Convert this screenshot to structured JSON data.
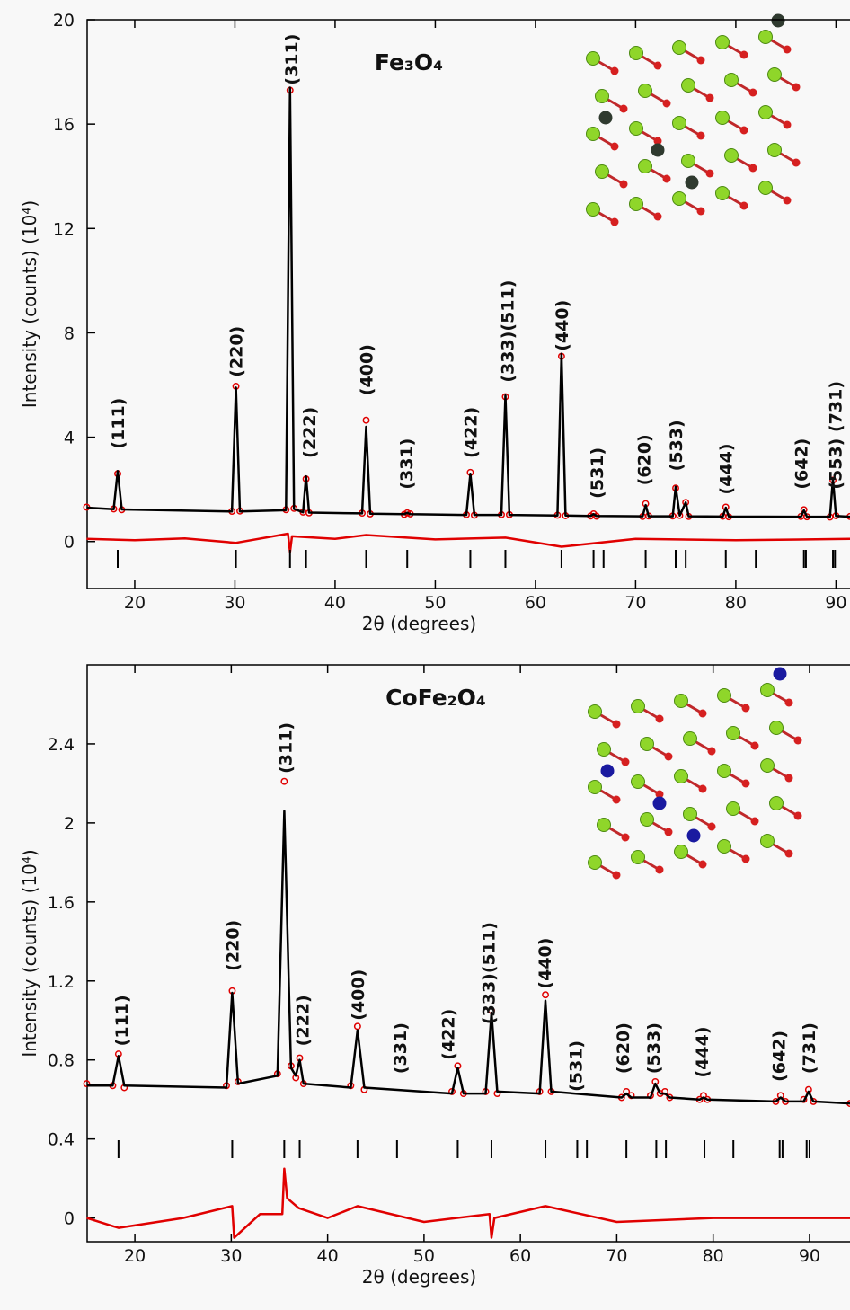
{
  "chart_data": [
    {
      "type": "line",
      "title": "Fe₃O₄",
      "xlabel": "2θ (degrees)",
      "ylabel": "Intensity (counts) (10⁴)",
      "xlim": [
        15.25,
        91.4
      ],
      "ylim": [
        -1.8,
        20
      ],
      "xticks": [
        20,
        30,
        40,
        50,
        60,
        70,
        80,
        90
      ],
      "yticks": [
        0,
        4,
        8,
        12,
        16,
        20
      ],
      "series": [
        {
          "marker": "circle",
          "color": "#e00000",
          "x": [
            15.2,
            17.9,
            18.3,
            18.7,
            29.7,
            30.1,
            30.5,
            35.1,
            35.5,
            35.9,
            36.8,
            37.1,
            37.4,
            42.7,
            43.1,
            43.5,
            46.9,
            47.2,
            47.5,
            53.1,
            53.5,
            53.9,
            56.6,
            57.0,
            57.4,
            62.2,
            62.6,
            63.0,
            65.5,
            65.8,
            66.1,
            70.7,
            71.0,
            71.3,
            73.7,
            74.0,
            74.4,
            75.0,
            75.3,
            78.7,
            79.0,
            79.3,
            86.5,
            86.8,
            87.1,
            89.4,
            89.7,
            90.0,
            91.4
          ],
          "values": [
            1.32,
            1.25,
            2.6,
            1.22,
            1.16,
            5.95,
            1.17,
            1.22,
            17.3,
            1.27,
            1.13,
            2.4,
            1.1,
            1.09,
            4.65,
            1.06,
            1.04,
            1.1,
            1.06,
            1.03,
            2.65,
            1.01,
            1.03,
            5.55,
            1.03,
            1.01,
            7.1,
            0.99,
            0.98,
            1.06,
            0.97,
            0.96,
            1.45,
            0.98,
            0.98,
            2.05,
            1.0,
            1.5,
            0.96,
            0.97,
            1.32,
            0.95,
            0.96,
            1.22,
            0.95,
            0.94,
            2.35,
            0.99,
            0.96
          ]
        },
        {
          "marker": "none",
          "color": "#000000",
          "x": [
            15.2,
            17.9,
            18.3,
            18.7,
            29.7,
            30.1,
            30.5,
            35.1,
            35.5,
            35.9,
            36.8,
            37.1,
            37.4,
            42.7,
            43.1,
            43.5,
            46.9,
            47.2,
            47.5,
            53.1,
            53.5,
            53.9,
            56.6,
            57.0,
            57.4,
            62.2,
            62.6,
            63.0,
            65.5,
            65.8,
            66.1,
            70.7,
            71.0,
            71.3,
            73.7,
            74.0,
            74.4,
            75.0,
            75.3,
            78.7,
            79.0,
            79.3,
            86.5,
            86.8,
            87.1,
            89.4,
            89.7,
            90.0,
            91.4
          ],
          "values": [
            1.3,
            1.24,
            2.7,
            1.23,
            1.15,
            5.9,
            1.15,
            1.2,
            17.4,
            1.25,
            1.12,
            2.5,
            1.11,
            1.08,
            4.4,
            1.07,
            1.05,
            1.1,
            1.05,
            1.02,
            2.6,
            1.02,
            1.02,
            5.6,
            1.02,
            1.0,
            7.2,
            1.0,
            0.98,
            1.05,
            0.98,
            0.97,
            1.4,
            0.97,
            0.97,
            2.1,
            1.0,
            1.5,
            0.97,
            0.96,
            1.3,
            0.96,
            0.95,
            1.2,
            0.95,
            0.95,
            2.4,
            0.98,
            0.95
          ]
        },
        {
          "marker": "none",
          "color": "#e00000",
          "x": [
            15.2,
            20,
            25,
            30.1,
            35.3,
            35.5,
            35.7,
            40,
            43.1,
            50,
            57,
            62.6,
            70,
            80,
            91.4
          ],
          "values": [
            0.1,
            0.05,
            0.12,
            -0.05,
            0.3,
            -0.4,
            0.2,
            0.1,
            0.25,
            0.08,
            0.15,
            -0.2,
            0.1,
            0.05,
            0.1
          ]
        }
      ],
      "reflections": {
        "color": "#000000",
        "x": [
          18.3,
          30.1,
          35.5,
          37.1,
          43.1,
          47.2,
          53.5,
          57.0,
          62.6,
          65.8,
          66.8,
          71.0,
          74.0,
          75.0,
          79.0,
          82.0,
          86.8,
          87.0,
          89.7,
          89.9
        ]
      },
      "annotations": [
        {
          "text": "(111)",
          "x": 18.3,
          "y": 3.55
        },
        {
          "text": "(220)",
          "x": 30.1,
          "y": 6.3
        },
        {
          "text": "(311)",
          "x": 35.6,
          "y": 17.5
        },
        {
          "text": "(222)",
          "x": 37.4,
          "y": 3.2
        },
        {
          "text": "(400)",
          "x": 43.1,
          "y": 5.6
        },
        {
          "text": "(331)",
          "x": 47.1,
          "y": 2.0
        },
        {
          "text": "(422)",
          "x": 53.5,
          "y": 3.2
        },
        {
          "text": "(333)(511)",
          "x": 57.2,
          "y": 6.1
        },
        {
          "text": "(440)",
          "x": 62.6,
          "y": 7.3
        },
        {
          "text": "(531)",
          "x": 66.1,
          "y": 1.65
        },
        {
          "text": "(620)",
          "x": 70.8,
          "y": 2.15
        },
        {
          "text": "(533)",
          "x": 74.0,
          "y": 2.7
        },
        {
          "text": "(444)",
          "x": 79.0,
          "y": 1.8
        },
        {
          "text": "(642)",
          "x": 86.5,
          "y": 2.0
        },
        {
          "text": "(553) (731)",
          "x": 89.9,
          "y": 2.0
        }
      ]
    },
    {
      "type": "line",
      "title": "CoFe₂O₄",
      "xlabel": "2θ (degrees)",
      "ylabel": "Intensity (counts) (10⁴)",
      "xlim": [
        15.05,
        94.2
      ],
      "ylim": [
        -0.12,
        2.8
      ],
      "xticks": [
        20,
        30,
        40,
        50,
        60,
        70,
        80,
        90
      ],
      "yticks": [
        0,
        0.4,
        0.8,
        1.2,
        1.6,
        2,
        2.4
      ],
      "series": [
        {
          "marker": "circle",
          "color": "#e00000",
          "x": [
            15.0,
            17.7,
            18.3,
            18.9,
            29.5,
            30.1,
            30.7,
            34.8,
            35.5,
            36.2,
            36.7,
            37.1,
            37.5,
            42.4,
            43.1,
            43.8,
            52.9,
            53.5,
            54.1,
            56.4,
            57.0,
            57.6,
            62.0,
            62.6,
            63.2,
            70.5,
            71.0,
            71.5,
            73.5,
            74.0,
            74.5,
            75.0,
            75.5,
            78.6,
            79.0,
            79.4,
            86.5,
            87.0,
            87.5,
            89.4,
            89.9,
            90.4,
            94.2
          ],
          "values": [
            0.68,
            0.67,
            0.83,
            0.66,
            0.67,
            1.15,
            0.69,
            0.73,
            2.21,
            0.77,
            0.71,
            0.81,
            0.68,
            0.67,
            0.97,
            0.65,
            0.64,
            0.77,
            0.63,
            0.64,
            1.05,
            0.63,
            0.64,
            1.13,
            0.64,
            0.61,
            0.64,
            0.62,
            0.62,
            0.69,
            0.63,
            0.64,
            0.61,
            0.6,
            0.62,
            0.6,
            0.59,
            0.62,
            0.59,
            0.6,
            0.65,
            0.59,
            0.58
          ]
        },
        {
          "marker": "none",
          "color": "#000000",
          "x": [
            15.0,
            17.7,
            18.3,
            18.9,
            29.5,
            30.1,
            30.7,
            34.8,
            35.5,
            36.2,
            36.7,
            37.1,
            37.5,
            42.4,
            43.1,
            43.8,
            52.9,
            53.5,
            54.1,
            56.4,
            57.0,
            57.6,
            62.0,
            62.6,
            63.2,
            70.5,
            71.0,
            71.5,
            73.5,
            74.0,
            74.5,
            75.0,
            75.5,
            78.6,
            79.0,
            79.4,
            86.5,
            87.0,
            87.5,
            89.4,
            89.9,
            90.4,
            94.2
          ],
          "values": [
            0.67,
            0.67,
            0.82,
            0.67,
            0.66,
            1.14,
            0.68,
            0.72,
            2.06,
            0.76,
            0.72,
            0.8,
            0.68,
            0.66,
            0.95,
            0.66,
            0.63,
            0.76,
            0.63,
            0.63,
            1.04,
            0.64,
            0.63,
            1.1,
            0.64,
            0.61,
            0.63,
            0.61,
            0.61,
            0.68,
            0.63,
            0.63,
            0.61,
            0.6,
            0.61,
            0.6,
            0.59,
            0.61,
            0.59,
            0.59,
            0.64,
            0.59,
            0.58
          ]
        },
        {
          "marker": "none",
          "color": "#e00000",
          "x": [
            15,
            18.3,
            25,
            30.1,
            30.3,
            33,
            35.3,
            35.5,
            35.8,
            37,
            40,
            43.1,
            50,
            56.8,
            57.0,
            57.3,
            62.6,
            70,
            80,
            94.2
          ],
          "values": [
            0,
            -0.05,
            0,
            0.06,
            -0.1,
            0.02,
            0.02,
            0.25,
            0.1,
            0.05,
            0,
            0.06,
            -0.02,
            0.02,
            -0.1,
            0.0,
            0.06,
            -0.02,
            0,
            0
          ]
        }
      ],
      "reflections": {
        "color": "#000000",
        "x": [
          18.3,
          30.1,
          35.5,
          37.1,
          43.1,
          47.2,
          53.5,
          57.0,
          62.6,
          65.9,
          66.9,
          71.0,
          74.1,
          75.1,
          79.1,
          82.1,
          86.9,
          87.2,
          89.7,
          90.0
        ]
      },
      "annotations": [
        {
          "text": "(111)",
          "x": 18.6,
          "y": 0.87
        },
        {
          "text": "(220)",
          "x": 30.1,
          "y": 1.25
        },
        {
          "text": "(311)",
          "x": 35.6,
          "y": 2.25
        },
        {
          "text": "(222)",
          "x": 37.4,
          "y": 0.87
        },
        {
          "text": "(400)",
          "x": 43.1,
          "y": 1.0
        },
        {
          "text": "(331)",
          "x": 47.5,
          "y": 0.73
        },
        {
          "text": "(422)",
          "x": 52.5,
          "y": 0.8
        },
        {
          "text": "(333)(511)",
          "x": 56.7,
          "y": 0.98
        },
        {
          "text": "(440)",
          "x": 62.5,
          "y": 1.16
        },
        {
          "text": "(531)",
          "x": 65.7,
          "y": 0.64
        },
        {
          "text": "(620)",
          "x": 70.6,
          "y": 0.73
        },
        {
          "text": "(533)",
          "x": 73.8,
          "y": 0.73
        },
        {
          "text": "(444)",
          "x": 78.8,
          "y": 0.71
        },
        {
          "text": "(642)",
          "x": 86.8,
          "y": 0.69
        },
        {
          "text": "(731)",
          "x": 89.9,
          "y": 0.73
        }
      ]
    }
  ]
}
